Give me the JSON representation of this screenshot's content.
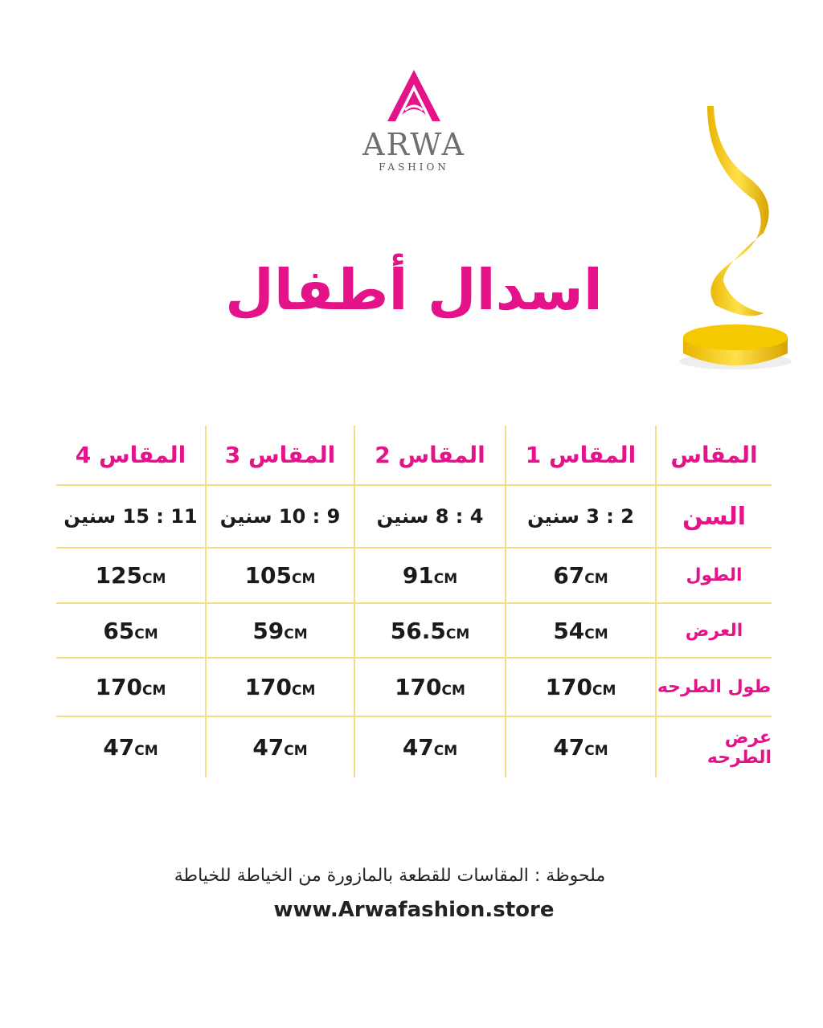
{
  "brand": {
    "name": "ARWA",
    "subtitle": "FASHION",
    "accent": "#e4138a"
  },
  "title": "اسدال أطفال",
  "table": {
    "header": [
      "المقاس",
      "المقاس 1",
      "المقاس 2",
      "المقاس 3",
      "المقاس 4"
    ],
    "rows": [
      {
        "label": "السن",
        "values": [
          "2 : 3 سنين",
          "4 : 8 سنين",
          "9 : 10 سنين",
          "11 : 15 سنين"
        ]
      },
      {
        "label": "الطول",
        "values": [
          "67",
          "91",
          "105",
          "125"
        ]
      },
      {
        "label": "العرض",
        "values": [
          "54",
          "56.5",
          "59",
          "65"
        ]
      },
      {
        "label": "طول الطرحه",
        "values": [
          "170",
          "170",
          "170",
          "170"
        ]
      },
      {
        "label": "عرض الطرحه",
        "values": [
          "47",
          "47",
          "47",
          "47"
        ]
      }
    ],
    "unit": "CM"
  },
  "note": "ملحوظة  :  المقاسات للقطعة بالمازورة من الخياطة للخياطة",
  "website": "www.Arwafashion.store"
}
